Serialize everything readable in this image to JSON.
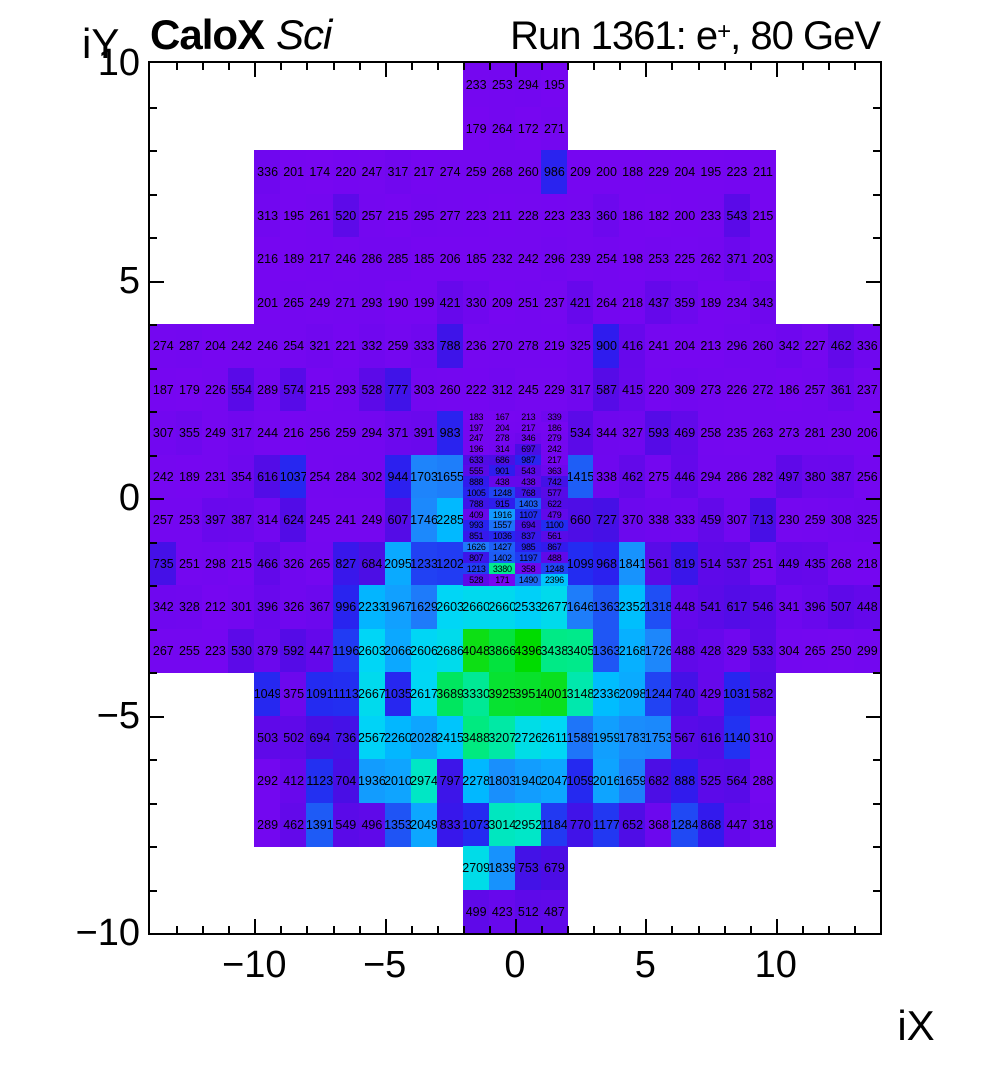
{
  "header": {
    "experiment": "CaloX",
    "experiment_style": "Sci",
    "run_info_prefix": "Run 1361: e",
    "run_info_sup": "+",
    "run_info_suffix": ", 80 GeV"
  },
  "axes": {
    "x_title": "iX",
    "y_title": "iY",
    "x_min": -14,
    "x_max": 14,
    "y_min": -10,
    "y_max": 10,
    "major_tick_step": 5,
    "minor_tick_step": 1,
    "x_tick_labels": [
      {
        "v": -10,
        "t": "−10"
      },
      {
        "v": -5,
        "t": "−5"
      },
      {
        "v": 0,
        "t": "0"
      },
      {
        "v": 5,
        "t": "5"
      },
      {
        "v": 10,
        "t": "10"
      }
    ],
    "y_tick_labels": [
      {
        "v": 10,
        "t": "10"
      },
      {
        "v": 5,
        "t": "5"
      },
      {
        "v": 0,
        "t": "0"
      },
      {
        "v": -5,
        "t": "−5"
      },
      {
        "v": -10,
        "t": "−10"
      }
    ]
  },
  "palette": {
    "stops": [
      [
        0,
        "#7c05f2"
      ],
      [
        300,
        "#7307f0"
      ],
      [
        500,
        "#5f09e9"
      ],
      [
        700,
        "#4a0ee5"
      ],
      [
        900,
        "#2f1cee"
      ],
      [
        1100,
        "#232cf1"
      ],
      [
        1400,
        "#1e5cf6"
      ],
      [
        1700,
        "#1e84fb"
      ],
      [
        2000,
        "#0fa3ff"
      ],
      [
        2300,
        "#00baff"
      ],
      [
        2600,
        "#00d6f6"
      ],
      [
        2900,
        "#00e6cf"
      ],
      [
        3200,
        "#00e9a6"
      ],
      [
        3500,
        "#00ea7e"
      ],
      [
        3800,
        "#00e44d"
      ],
      [
        4050,
        "#0ddf14"
      ],
      [
        4400,
        "#00dc00"
      ]
    ]
  },
  "layout_colors": {
    "background": "#ffffff",
    "frame": "#000000",
    "cell_text": "#000000"
  },
  "chart_data": {
    "type": "heatmap",
    "title": "CaloX Sci — Run 1361: e+, 80 GeV",
    "xlabel": "iX",
    "ylabel": "iY",
    "x_range": [
      -14,
      14
    ],
    "y_range": [
      -10,
      10
    ],
    "z_min": 167,
    "z_max": 4396,
    "grid": false,
    "legend": "none",
    "bands": [
      {
        "iy_hi": 10,
        "segments": [
          {
            "ix_start": -2,
            "values": [
              233,
              253,
              294,
              195
            ]
          }
        ]
      },
      {
        "iy_hi": 9,
        "segments": [
          {
            "ix_start": -2,
            "values": [
              179,
              264,
              172,
              271
            ]
          }
        ]
      },
      {
        "iy_hi": 8,
        "segments": [
          {
            "ix_start": -10,
            "values": [
              336,
              201,
              174,
              220,
              247,
              317,
              217,
              274,
              259,
              268,
              260,
              986,
              209,
              200,
              188,
              229,
              204,
              195,
              223,
              211
            ]
          }
        ]
      },
      {
        "iy_hi": 7,
        "segments": [
          {
            "ix_start": -10,
            "values": [
              313,
              195,
              261,
              520,
              257,
              215,
              295,
              277,
              223,
              211,
              228,
              223,
              233,
              360,
              186,
              182,
              200,
              233,
              543,
              215
            ]
          }
        ]
      },
      {
        "iy_hi": 6,
        "segments": [
          {
            "ix_start": -10,
            "values": [
              216,
              189,
              217,
              246,
              286,
              285,
              185,
              206,
              185,
              232,
              242,
              296,
              239,
              254,
              198,
              253,
              225,
              262,
              371,
              203
            ]
          }
        ]
      },
      {
        "iy_hi": 5,
        "segments": [
          {
            "ix_start": -10,
            "values": [
              201,
              265,
              249,
              271,
              293,
              190,
              199,
              421,
              330,
              209,
              251,
              237,
              421,
              264,
              218,
              437,
              359,
              189,
              234,
              343
            ]
          }
        ]
      },
      {
        "iy_hi": 4,
        "segments": [
          {
            "ix_start": -14,
            "values": [
              274,
              287,
              204,
              242,
              246,
              254,
              321,
              221,
              332,
              259,
              333,
              788,
              236,
              270,
              278,
              219,
              325,
              900,
              416,
              241,
              204,
              213,
              296,
              260,
              342,
              227,
              462,
              336
            ]
          }
        ]
      },
      {
        "iy_hi": 3,
        "segments": [
          {
            "ix_start": -14,
            "values": [
              187,
              179,
              226,
              554,
              289,
              574,
              215,
              293,
              528,
              777,
              303,
              260,
              222,
              312,
              245,
              229,
              317,
              587,
              415,
              220,
              309,
              273,
              226,
              272,
              186,
              257,
              361,
              237
            ]
          }
        ]
      },
      {
        "iy_hi": 2,
        "segments": [
          {
            "ix_start": -14,
            "values": [
              307,
              355,
              249,
              317,
              244,
              216,
              256,
              259,
              294,
              371,
              391,
              983
            ]
          },
          {
            "ix_start": 2,
            "values": [
              534,
              344,
              327,
              593,
              469,
              258,
              235,
              263,
              273,
              281,
              230,
              206
            ]
          }
        ]
      },
      {
        "iy_hi": 1,
        "segments": [
          {
            "ix_start": -14,
            "values": [
              242,
              189,
              231,
              354,
              616,
              1037,
              254,
              284,
              302,
              944,
              1703,
              1655
            ]
          },
          {
            "ix_start": 2,
            "values": [
              1415,
              338,
              462,
              275,
              446,
              294,
              286,
              282,
              497,
              380,
              387,
              256
            ]
          }
        ]
      },
      {
        "iy_hi": 0,
        "segments": [
          {
            "ix_start": -14,
            "values": [
              257,
              253,
              397,
              387,
              314,
              624,
              245,
              241,
              249,
              607,
              1746,
              2285
            ]
          },
          {
            "ix_start": 2,
            "values": [
              660,
              727,
              370,
              338,
              333,
              459,
              307,
              713,
              230,
              259,
              308,
              325
            ]
          }
        ]
      },
      {
        "iy_hi": -1,
        "segments": [
          {
            "ix_start": -14,
            "values": [
              735,
              251,
              298,
              215,
              466,
              326,
              265,
              827,
              684,
              2095,
              1233,
              1202
            ]
          },
          {
            "ix_start": 2,
            "values": [
              1099,
              968,
              1841,
              561,
              819,
              514,
              537,
              251,
              449,
              435,
              268,
              218
            ]
          }
        ]
      },
      {
        "iy_hi": -2,
        "segments": [
          {
            "ix_start": -14,
            "values": [
              342,
              328,
              212,
              301,
              396,
              326,
              367,
              996,
              2233,
              1967,
              1629,
              2603,
              2660,
              2660,
              2533,
              2677,
              1646,
              1363,
              2352,
              1318,
              448,
              541,
              617,
              546,
              341,
              396,
              507,
              448
            ]
          }
        ]
      },
      {
        "iy_hi": -3,
        "segments": [
          {
            "ix_start": -14,
            "values": [
              267,
              255,
              223,
              530,
              379,
              592,
              447,
              1196,
              2603,
              2066,
              2606,
              2686,
              4048,
              3866,
              4396,
              3438,
              3405,
              1363,
              2168,
              1726,
              488,
              428,
              329,
              533,
              304,
              265,
              250,
              299
            ]
          }
        ]
      },
      {
        "iy_hi": -4,
        "segments": [
          {
            "ix_start": -10,
            "values": [
              1049,
              375,
              1091,
              1113,
              2667,
              1035,
              2617,
              3689,
              3330,
              3925,
              3951,
              4001,
              3148,
              2336,
              2098,
              1244,
              740,
              429,
              1031,
              582
            ]
          }
        ]
      },
      {
        "iy_hi": -5,
        "segments": [
          {
            "ix_start": -10,
            "values": [
              503,
              502,
              694,
              736,
              2567,
              2260,
              2028,
              2415,
              3488,
              3207,
              2726,
              2611,
              1589,
              1959,
              1783,
              1753,
              567,
              616,
              1140,
              310
            ]
          }
        ]
      },
      {
        "iy_hi": -6,
        "segments": [
          {
            "ix_start": -10,
            "values": [
              292,
              412,
              1123,
              704,
              1936,
              2010,
              2974,
              797,
              2278,
              1803,
              1940,
              2047,
              1059,
              2016,
              1659,
              682,
              888,
              525,
              564,
              288
            ]
          }
        ]
      },
      {
        "iy_hi": -7,
        "segments": [
          {
            "ix_start": -10,
            "values": [
              289,
              462,
              1391,
              549,
              496,
              1353,
              2049,
              833,
              1073,
              3014,
              2952,
              1184,
              770,
              1177,
              652,
              368,
              1284,
              868,
              447,
              318
            ]
          }
        ]
      },
      {
        "iy_hi": -8,
        "segments": [
          {
            "ix_start": -2,
            "values": [
              2709,
              1839,
              753,
              679
            ]
          }
        ]
      },
      {
        "iy_hi": -9,
        "segments": [
          {
            "ix_start": -2,
            "values": [
              499,
              423,
              512,
              487
            ]
          }
        ]
      }
    ],
    "fine_block": {
      "ix_start": -2,
      "iy_top": 2,
      "cols": 4,
      "cell_w": 1,
      "cell_h": 0.25,
      "rows": [
        [
          183,
          167,
          213,
          339
        ],
        [
          197,
          204,
          217,
          186
        ],
        [
          247,
          278,
          346,
          279
        ],
        [
          196,
          314,
          697,
          242
        ],
        [
          633,
          686,
          987,
          217
        ],
        [
          555,
          901,
          543,
          363
        ],
        [
          888,
          438,
          438,
          742
        ],
        [
          1005,
          1248,
          768,
          577
        ],
        [
          788,
          915,
          1403,
          622
        ],
        [
          409,
          1916,
          1107,
          479
        ],
        [
          993,
          1557,
          694,
          1100
        ],
        [
          851,
          1036,
          837,
          561
        ],
        [
          1626,
          1427,
          985,
          867
        ],
        [
          807,
          1402,
          1197,
          488
        ],
        [
          1213,
          3380,
          358,
          1248
        ],
        [
          528,
          171,
          1490,
          2396
        ]
      ]
    }
  }
}
